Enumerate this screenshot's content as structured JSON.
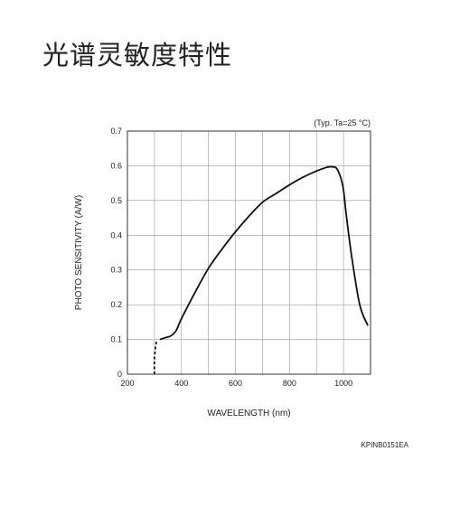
{
  "page": {
    "title": "光谱灵敏度特性"
  },
  "chart_data": {
    "type": "line",
    "title": "",
    "xlabel": "WAVELENGTH (nm)",
    "ylabel": "PHOTO SENSITIVITY (A/W)",
    "condition_note": "(Typ. Ta=25 °C)",
    "figure_code": "KPINB0151EA",
    "xlim": [
      200,
      1100
    ],
    "ylim": [
      0,
      0.7
    ],
    "x_ticks": [
      200,
      400,
      600,
      800,
      1000
    ],
    "x_tick_labels": [
      "200",
      "400",
      "600",
      "800",
      "1000"
    ],
    "y_ticks": [
      0,
      0.1,
      0.2,
      0.3,
      0.4,
      0.5,
      0.6,
      0.7
    ],
    "y_tick_labels": [
      "0",
      "0.1",
      "0.2",
      "0.3",
      "0.4",
      "0.5",
      "0.6",
      "0.7"
    ],
    "grid": true,
    "series": [
      {
        "style": "dashed",
        "x": [
          300,
          300,
          304,
          310
        ],
        "y": [
          0,
          0.04,
          0.08,
          0.098
        ]
      },
      {
        "style": "solid",
        "x": [
          320,
          340,
          360,
          380,
          400,
          450,
          500,
          550,
          600,
          650,
          700,
          750,
          800,
          850,
          900,
          940,
          960,
          975,
          990,
          1000,
          1010,
          1030,
          1060,
          1090
        ],
        "y": [
          0.1,
          0.105,
          0.11,
          0.125,
          0.16,
          0.235,
          0.305,
          0.36,
          0.41,
          0.455,
          0.495,
          0.52,
          0.545,
          0.567,
          0.585,
          0.596,
          0.597,
          0.592,
          0.565,
          0.53,
          0.46,
          0.34,
          0.2,
          0.14
        ]
      }
    ]
  }
}
